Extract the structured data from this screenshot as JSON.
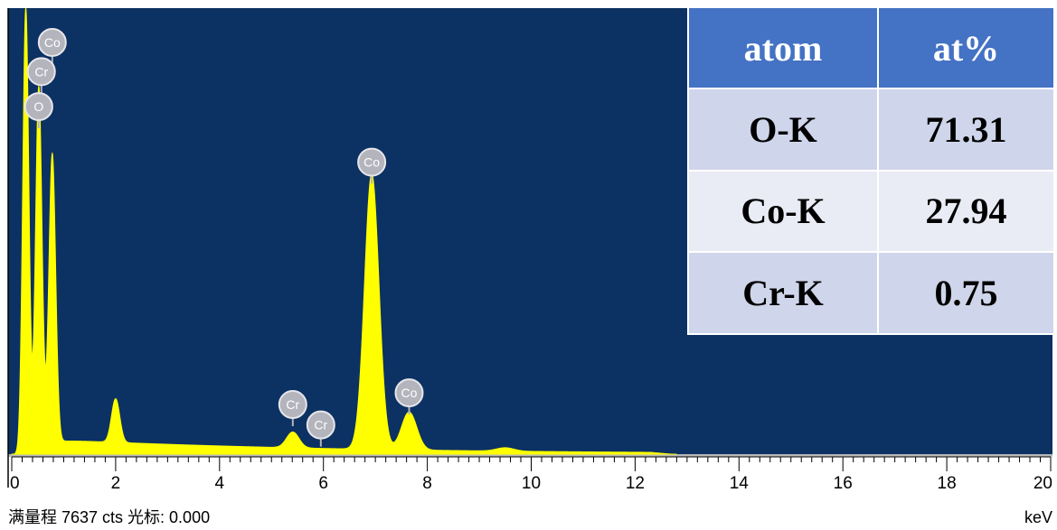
{
  "chart_data": {
    "type": "line",
    "xlabel": "",
    "ylabel": "",
    "x_unit": "keV",
    "xlim": [
      0,
      20
    ],
    "ylim": [
      0,
      7637
    ],
    "x_tick_labels": [
      "0",
      "2",
      "4",
      "6",
      "8",
      "10",
      "12",
      "14",
      "16",
      "18",
      "20"
    ],
    "series": [
      {
        "values": [
          {
            "x": 0.27,
            "y": 7637
          },
          {
            "x": 0.52,
            "y": 6300
          },
          {
            "x": 0.78,
            "y": 5150
          },
          {
            "x": 2.0,
            "y": 950
          },
          {
            "x": 5.41,
            "y": 380
          },
          {
            "x": 6.93,
            "y": 4800
          },
          {
            "x": 7.65,
            "y": 720
          },
          {
            "x": 9.5,
            "y": 110
          }
        ]
      }
    ],
    "peak_labels": [
      {
        "label": "Co",
        "x": 0.78,
        "y": 7050
      },
      {
        "label": "Cr",
        "x": 0.57,
        "y": 6550
      },
      {
        "label": "O",
        "x": 0.52,
        "y": 5950
      },
      {
        "label": "Co",
        "x": 6.93,
        "y": 5000
      },
      {
        "label": "Cr",
        "x": 5.41,
        "y": 850
      },
      {
        "label": "Cr",
        "x": 5.95,
        "y": 500
      },
      {
        "label": "Co",
        "x": 7.65,
        "y": 1050
      }
    ],
    "table": {
      "headers": [
        "atom",
        "at%"
      ],
      "rows": [
        [
          "O-K",
          "71.31"
        ],
        [
          "Co-K",
          "27.94"
        ],
        [
          "Cr-K",
          "0.75"
        ]
      ]
    }
  },
  "footer": {
    "full_scale_label": "满量程 7637 cts 光标: 0.000",
    "unit_label": "keV"
  },
  "colors": {
    "plot_bg": "#0c3163",
    "spectrum": "#ffff00",
    "badge_fill": "#b4b4bc",
    "table_header": "#4472c4"
  }
}
